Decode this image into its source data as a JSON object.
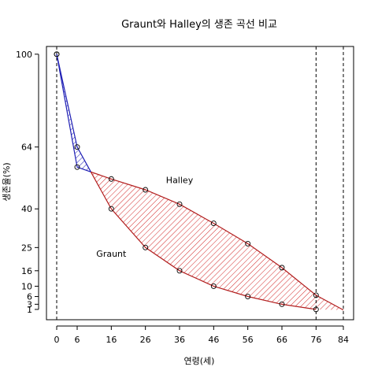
{
  "chart_data": {
    "type": "line",
    "title": "Graunt와 Halley의 생존 곡선 비교",
    "xlabel": "연령(세)",
    "ylabel": "생존율(%)",
    "xlim": [
      -3,
      87
    ],
    "ylim": [
      -3,
      103
    ],
    "x_ticks": [
      0,
      6,
      16,
      26,
      36,
      46,
      56,
      66,
      76,
      84
    ],
    "y_ticks": [
      1,
      3,
      6,
      10,
      16,
      25,
      40,
      64,
      100
    ],
    "vlines": [
      0,
      76,
      84
    ],
    "grid": false,
    "legend": "none",
    "series": [
      {
        "name": "Graunt",
        "color": "#b21e1e",
        "x": [
          0,
          6,
          16,
          26,
          36,
          46,
          56,
          66,
          76
        ],
        "y": [
          100,
          64,
          40,
          25,
          16,
          10,
          6,
          3,
          1
        ]
      },
      {
        "name": "Halley",
        "color": "#b21e1e",
        "x": [
          0,
          6,
          16,
          26,
          36,
          46,
          56,
          66,
          76,
          84
        ],
        "y": [
          100,
          56.2,
          51.6,
          47.4,
          41.8,
          34.4,
          26.5,
          17.2,
          6.5,
          0.8
        ]
      }
    ],
    "annotations": [
      {
        "text": "Halley",
        "x": 36,
        "y": 50
      },
      {
        "text": "Graunt",
        "x": 16,
        "y": 21.5
      }
    ],
    "fill_colors": {
      "halley_above": "#1e1eb4",
      "graunt_above": "#d22828"
    },
    "point_marker": "open-circle"
  }
}
